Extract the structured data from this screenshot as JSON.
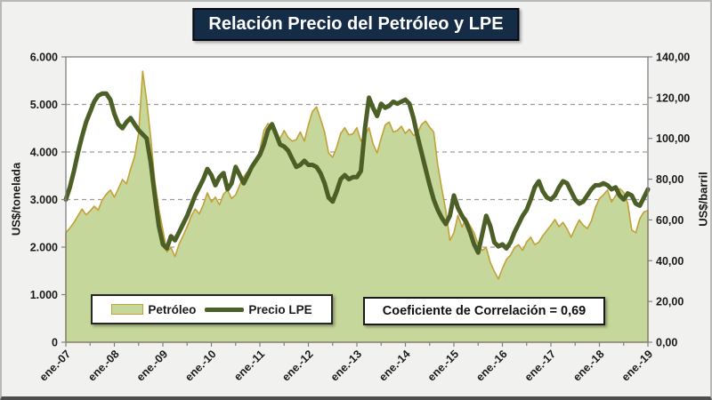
{
  "window": {
    "background": "#f1f1f0",
    "bottom_edge_color": "#4d4d4d"
  },
  "title": "Relación Precio del Petróleo y LPE",
  "title_style": {
    "background": "#152c47",
    "text_color": "#ffffff"
  },
  "legend": {
    "petroleo_label": "Petróleo",
    "precio_lpe_label": "Precio LPE"
  },
  "annotation": "Coeficiente de Correlación = 0,69",
  "colors": {
    "area_fill": "#c5d79b",
    "area_stroke": "#c2a136",
    "line_stroke": "#4c5f26",
    "gridline": "#9c9c9c",
    "plot_border": "#808080",
    "tick_text": "#1a1a1a"
  },
  "chart_data": {
    "type": "area",
    "subtype": "combo-area-line",
    "title": "Relación Precio del Petróleo y LPE",
    "grid": "horizontal dashed, left-axis divisions",
    "legend_position": "inside bottom-left",
    "x": {
      "unit": "month",
      "start_label": "ene.-07",
      "end_label": "ene.-19",
      "n_points": 145,
      "tick_labels": [
        "ene.-07",
        "ene.-08",
        "ene.-09",
        "ene.-10",
        "ene.-11",
        "ene.-12",
        "ene.-13",
        "ene.-14",
        "ene.-15",
        "ene.-16",
        "ene.-17",
        "ene.-18",
        "ene.-19"
      ],
      "minor_tick_every_months": 6
    },
    "left_axis": {
      "label": "US$/tonelada",
      "min": 0,
      "max": 6000,
      "step": 1000,
      "tick_labels": [
        "0",
        "1.000",
        "2.000",
        "3.000",
        "4.000",
        "5.000",
        "6.000"
      ]
    },
    "right_axis": {
      "label": "US$/barril",
      "min": 0,
      "max": 140,
      "step": 20,
      "tick_labels": [
        "0,00",
        "20,00",
        "40,00",
        "60,00",
        "80,00",
        "100,00",
        "120,00",
        "140,00"
      ]
    },
    "series": [
      {
        "name": "Petróleo",
        "type": "area",
        "axis": "left",
        "values": [
          2300,
          2400,
          2520,
          2660,
          2800,
          2680,
          2760,
          2860,
          2780,
          2990,
          3110,
          3200,
          3050,
          3230,
          3420,
          3330,
          3640,
          3900,
          4400,
          5700,
          5080,
          4290,
          3400,
          2790,
          2360,
          1900,
          1990,
          1800,
          2060,
          2240,
          2430,
          2650,
          2800,
          2700,
          2890,
          3140,
          2950,
          3050,
          2890,
          3110,
          3200,
          3020,
          3100,
          3300,
          3480,
          3590,
          3670,
          3800,
          4040,
          4450,
          4600,
          4500,
          4350,
          4290,
          4450,
          4300,
          4230,
          4260,
          4420,
          4230,
          4570,
          4850,
          4950,
          4700,
          4420,
          3980,
          3890,
          4100,
          4390,
          4510,
          4360,
          4380,
          4510,
          4230,
          4350,
          4510,
          4170,
          3980,
          4290,
          4570,
          4630,
          4420,
          4450,
          4540,
          4390,
          4480,
          4350,
          4400,
          4580,
          4650,
          4520,
          4420,
          3730,
          3230,
          2770,
          2140,
          2300,
          2670,
          2420,
          2610,
          2450,
          2300,
          2050,
          1930,
          1990,
          1680,
          1490,
          1330,
          1550,
          1740,
          1830,
          1990,
          2050,
          1930,
          2110,
          2210,
          2050,
          2100,
          2240,
          2350,
          2460,
          2580,
          2430,
          2520,
          2380,
          2210,
          2400,
          2570,
          2460,
          2390,
          2550,
          2830,
          3020,
          3100,
          3200,
          2950,
          3080,
          3230,
          3150,
          2920,
          2360,
          2300,
          2600,
          2740,
          2770
        ]
      },
      {
        "name": "Precio LPE",
        "type": "line",
        "axis": "right",
        "values": [
          70,
          76,
          84,
          93,
          101,
          108,
          113,
          118,
          121,
          122,
          122,
          119,
          112,
          107,
          105,
          108,
          110,
          107,
          104,
          102,
          100,
          88,
          72,
          57,
          48,
          46,
          52,
          50,
          54,
          58,
          62,
          67,
          72,
          76,
          80,
          85,
          82,
          77,
          81,
          83,
          75,
          78,
          86,
          82,
          78,
          82,
          86,
          89,
          92,
          97,
          104,
          107,
          102,
          97,
          96,
          94,
          90,
          86,
          87,
          89,
          87,
          87,
          86,
          83,
          78,
          71,
          69,
          74,
          80,
          82,
          80,
          81,
          81,
          84,
          105,
          120,
          115,
          111,
          117,
          115,
          116,
          118,
          117,
          118,
          119,
          117,
          110,
          101,
          93,
          85,
          77,
          70,
          65,
          61,
          58,
          62,
          72,
          66,
          62,
          59,
          54,
          48,
          44,
          53,
          62,
          57,
          49,
          47,
          48,
          46,
          49,
          54,
          58,
          62,
          65,
          70,
          76,
          79,
          74,
          71,
          70,
          72,
          76,
          79,
          78,
          74,
          70,
          68,
          69,
          72,
          75,
          77,
          77,
          78,
          77,
          75,
          76,
          72,
          70,
          73,
          72,
          68,
          67,
          71,
          75
        ]
      }
    ],
    "annotations": [
      "Coeficiente de Correlación = 0,69"
    ]
  }
}
